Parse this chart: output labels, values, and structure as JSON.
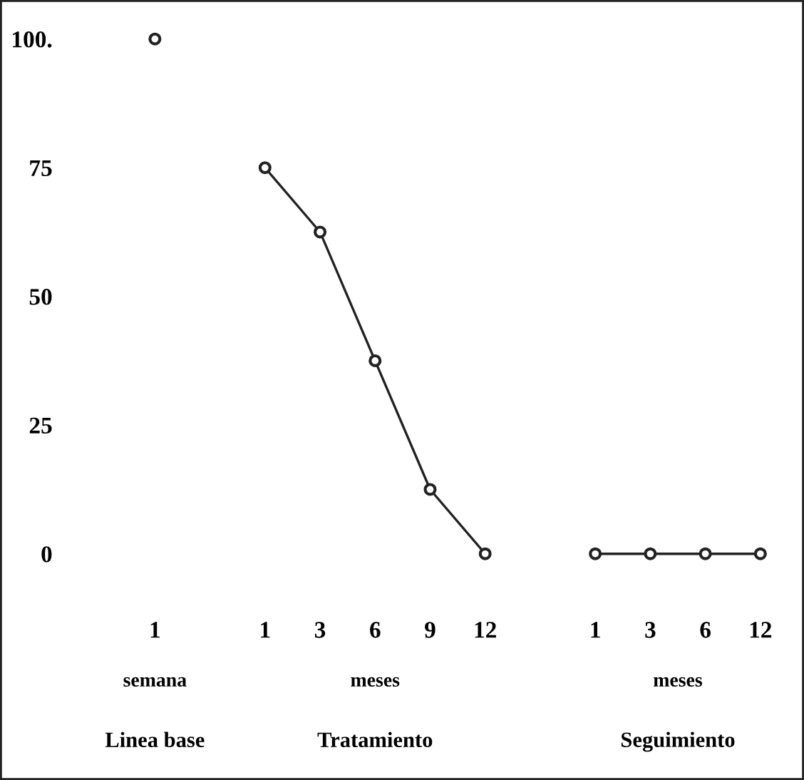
{
  "chart_data": {
    "type": "line",
    "categories": [
      "1",
      null,
      "1",
      "3",
      "6",
      "9",
      "12",
      null,
      "1",
      "3",
      "6",
      "12"
    ],
    "series": [
      {
        "color": "#222222",
        "type": "scatter",
        "values": [
          100,
          null,
          null,
          null,
          null,
          null,
          null,
          null,
          null,
          null,
          null,
          null
        ]
      },
      {
        "color": "#222222",
        "values": [
          null,
          null,
          75,
          62.5,
          37.5,
          12.5,
          0,
          null,
          null,
          null,
          null,
          null
        ]
      },
      {
        "color": "#222222",
        "values": [
          null,
          null,
          null,
          null,
          null,
          null,
          null,
          null,
          0,
          0,
          0,
          0
        ]
      }
    ],
    "ylim": [
      0,
      100
    ],
    "yticks": [
      {
        "value": 100,
        "label": "100."
      },
      75,
      50,
      25,
      0
    ],
    "marker": "circle",
    "line_style": "solid",
    "grid": false,
    "legend": false,
    "annotations": [
      "semana",
      "meses",
      "meses",
      "Linea base",
      "Tratamiento",
      "Seguimiento"
    ]
  }
}
